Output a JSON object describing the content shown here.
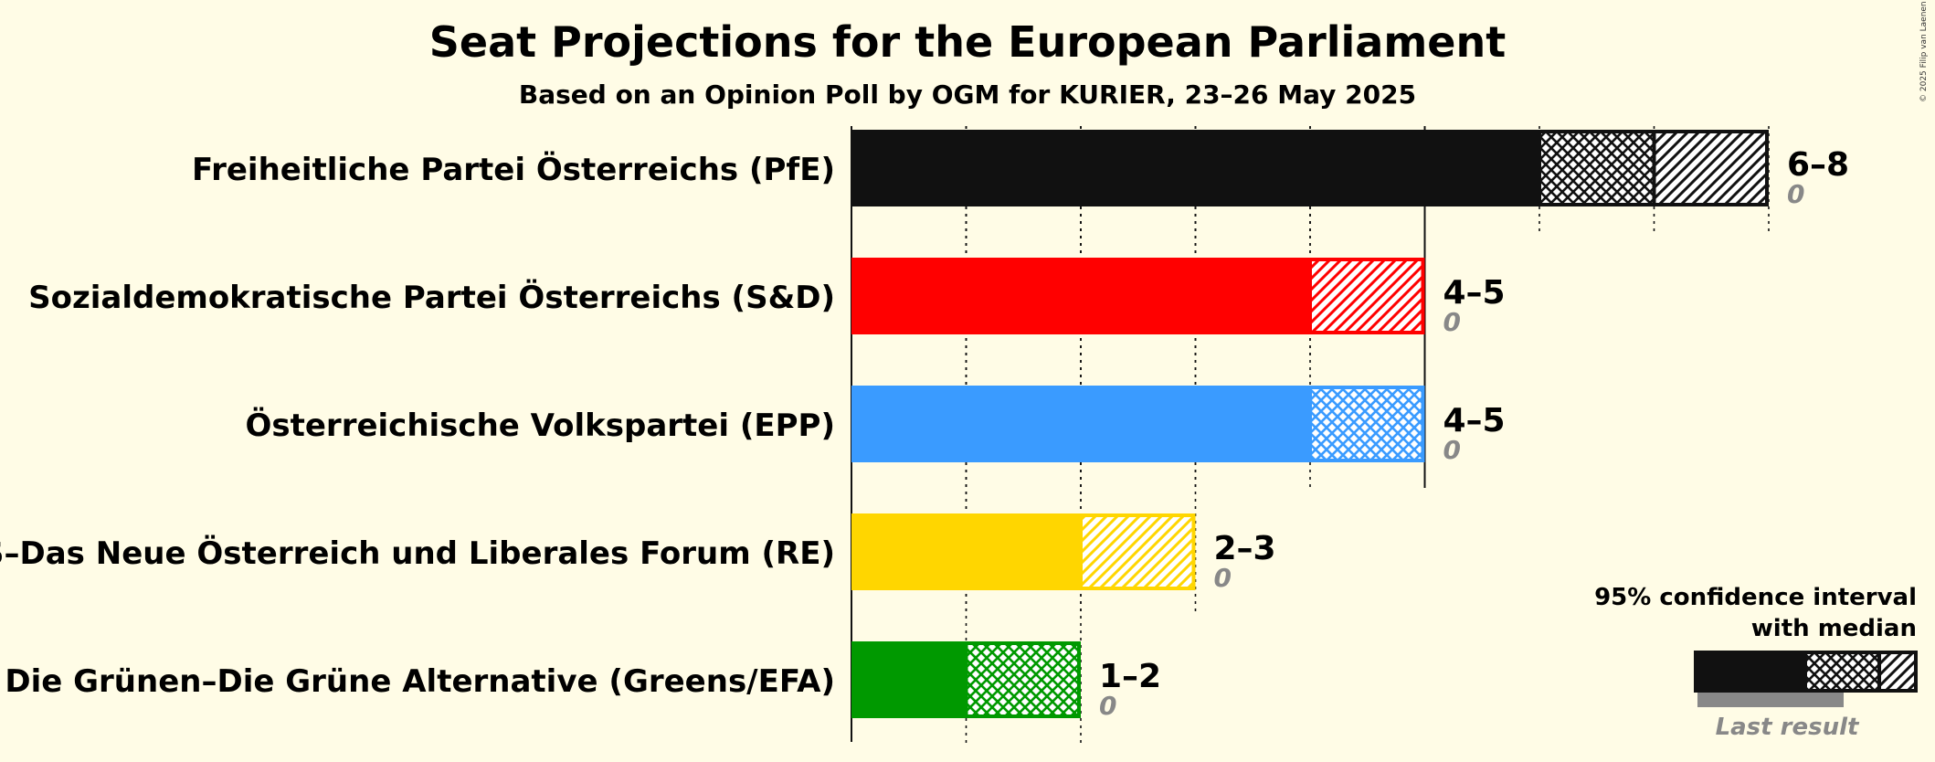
{
  "chart_data": {
    "type": "bar",
    "title": "Seat Projections for the European Parliament",
    "subtitle": "Based on an Opinion Poll by OGM for KURIER, 23–26 May 2025",
    "xlim": [
      0,
      8
    ],
    "grid": true,
    "legend_position": "bottom-right",
    "parties": [
      {
        "name": "Freiheitliche Partei Österreichs (PfE)",
        "color": "#111111",
        "low": 6,
        "median": 7,
        "high": 8,
        "range_label": "6–8",
        "last_result": 0,
        "last_label": "0"
      },
      {
        "name": "Sozialdemokratische Partei Österreichs (S&D)",
        "color": "#ff0000",
        "low": 4,
        "median": 4,
        "high": 5,
        "range_label": "4–5",
        "last_result": 0,
        "last_label": "0"
      },
      {
        "name": "Österreichische Volkspartei (EPP)",
        "color": "#3a9bff",
        "low": 4,
        "median": 5,
        "high": 5,
        "range_label": "4–5",
        "last_result": 0,
        "last_label": "0"
      },
      {
        "name": "NEOS–Das Neue Österreich und Liberales Forum (RE)",
        "color": "#ffd600",
        "low": 2,
        "median": 2,
        "high": 3,
        "range_label": "2–3",
        "last_result": 0,
        "last_label": "0"
      },
      {
        "name": "Die Grünen–Die Grüne Alternative (Greens/EFA)",
        "color": "#009900",
        "low": 1,
        "median": 2,
        "high": 2,
        "range_label": "1–2",
        "last_result": 0,
        "last_label": "0"
      }
    ]
  },
  "legend": {
    "line1": "95% confidence interval",
    "line2": "with median",
    "last": "Last result",
    "color": "#111111",
    "last_color": "#888888"
  },
  "copyright": "© 2025 Filip van Laenen"
}
